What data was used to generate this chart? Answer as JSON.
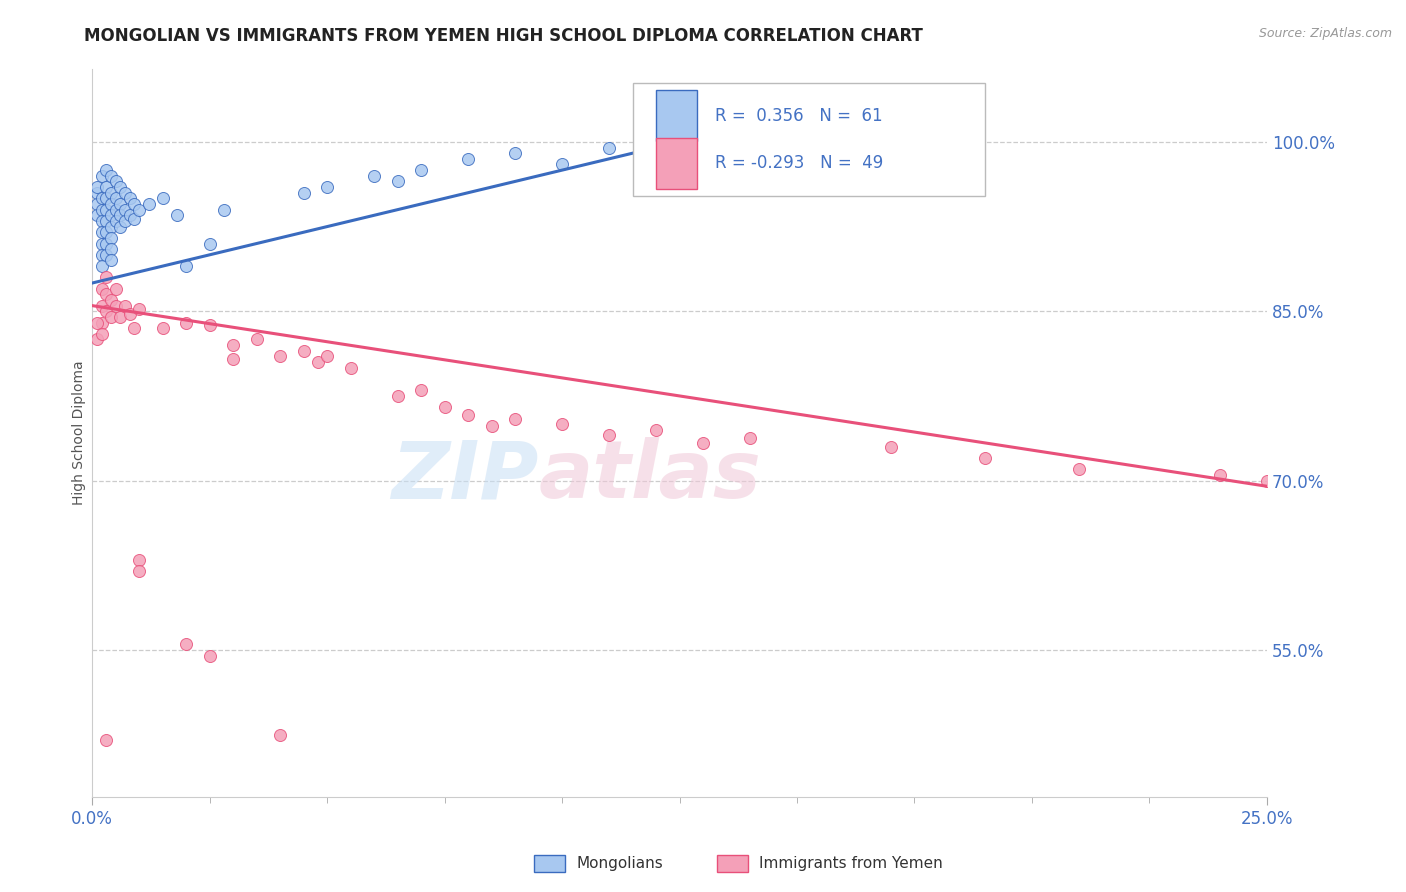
{
  "title": "MONGOLIAN VS IMMIGRANTS FROM YEMEN HIGH SCHOOL DIPLOMA CORRELATION CHART",
  "source": "Source: ZipAtlas.com",
  "ylabel": "High School Diploma",
  "legend_mongolians": "Mongolians",
  "legend_yemen": "Immigrants from Yemen",
  "mongolian_R": "0.356",
  "mongolian_N": "61",
  "yemen_R": "-0.293",
  "yemen_N": "49",
  "yticks": [
    0.55,
    0.7,
    0.85,
    1.0
  ],
  "ytick_labels": [
    "55.0%",
    "70.0%",
    "85.0%",
    "100.0%"
  ],
  "xlim": [
    0.0,
    0.25
  ],
  "ylim": [
    0.42,
    1.065
  ],
  "mongolian_color": "#a8c8f0",
  "mongolian_line_color": "#3a6bbf",
  "yemen_color": "#f4a0b8",
  "yemen_line_color": "#e8507a",
  "background_color": "#ffffff",
  "mong_trend_x0": 0.0,
  "mong_trend_y0": 0.875,
  "mong_trend_x1": 0.13,
  "mong_trend_y1": 1.005,
  "yemen_trend_x0": 0.0,
  "yemen_trend_y0": 0.855,
  "yemen_trend_x1": 0.25,
  "yemen_trend_y1": 0.695
}
